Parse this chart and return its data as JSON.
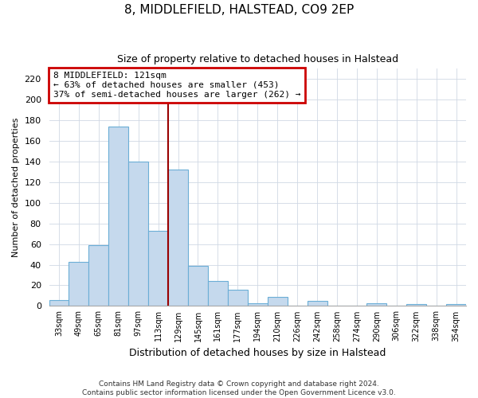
{
  "title": "8, MIDDLEFIELD, HALSTEAD, CO9 2EP",
  "subtitle": "Size of property relative to detached houses in Halstead",
  "xlabel": "Distribution of detached houses by size in Halstead",
  "ylabel": "Number of detached properties",
  "bar_color": "#c5d9ed",
  "bar_edge_color": "#6baed6",
  "categories": [
    "33sqm",
    "49sqm",
    "65sqm",
    "81sqm",
    "97sqm",
    "113sqm",
    "129sqm",
    "145sqm",
    "161sqm",
    "177sqm",
    "194sqm",
    "210sqm",
    "226sqm",
    "242sqm",
    "258sqm",
    "274sqm",
    "290sqm",
    "306sqm",
    "322sqm",
    "338sqm",
    "354sqm"
  ],
  "values": [
    6,
    43,
    59,
    174,
    140,
    73,
    132,
    39,
    24,
    16,
    3,
    9,
    0,
    5,
    0,
    0,
    3,
    0,
    2,
    0,
    2
  ],
  "ylim": [
    0,
    230
  ],
  "yticks": [
    0,
    20,
    40,
    60,
    80,
    100,
    120,
    140,
    160,
    180,
    200,
    220
  ],
  "vline_x": 5.5,
  "vline_color": "#990000",
  "box_edge_color": "#cc0000",
  "box_line1": "8 MIDDLEFIELD: 121sqm",
  "box_line2": "← 63% of detached houses are smaller (453)",
  "box_line3": "37% of semi-detached houses are larger (262) →",
  "footnote1": "Contains HM Land Registry data © Crown copyright and database right 2024.",
  "footnote2": "Contains public sector information licensed under the Open Government Licence v3.0.",
  "bg_color": "#ffffff",
  "grid_color": "#d0d8e4"
}
